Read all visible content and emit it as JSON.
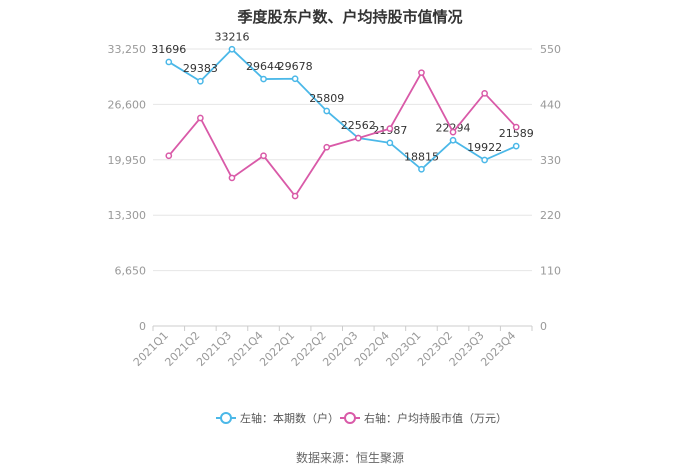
{
  "chart_data": {
    "type": "line",
    "title": "季度股东户数、户均持股市值情况",
    "categories": [
      "2021Q1",
      "2021Q2",
      "2021Q3",
      "2021Q4",
      "2022Q1",
      "2022Q2",
      "2022Q3",
      "2022Q4",
      "2023Q1",
      "2023Q2",
      "2023Q3",
      "2023Q4"
    ],
    "series": [
      {
        "name": "左轴：本期数（户）",
        "axis": "left",
        "color": "#4bb8e8",
        "values": [
          31696,
          29383,
          33216,
          29644,
          29678,
          25809,
          22562,
          21987,
          18815,
          22294,
          19922,
          21589
        ],
        "labels": [
          "31696",
          "29383",
          "33216",
          "29644",
          "29678",
          "25809",
          "22562",
          "21987",
          "18815",
          "22294",
          "19922",
          "21589"
        ]
      },
      {
        "name": "右轴：户均持股市值（万元）",
        "axis": "right",
        "color": "#d95aa8",
        "values": [
          338,
          413,
          294,
          338,
          258,
          355,
          373,
          392,
          503,
          385,
          462,
          395
        ]
      }
    ],
    "y_left": {
      "min": 0,
      "max": 33250,
      "ticks": [
        "0",
        "6,650",
        "13,300",
        "19,950",
        "26,600",
        "33,250"
      ]
    },
    "y_right": {
      "min": 0,
      "max": 550,
      "ticks": [
        "0",
        "110",
        "220",
        "330",
        "440",
        "550"
      ]
    },
    "grid": "horizontal",
    "legend_position": "bottom"
  },
  "source": "数据来源：恒生聚源",
  "colors": {
    "grid": "#e6e6e6",
    "axis_text": "#999999",
    "label_text": "#333333",
    "title": "#333333"
  }
}
